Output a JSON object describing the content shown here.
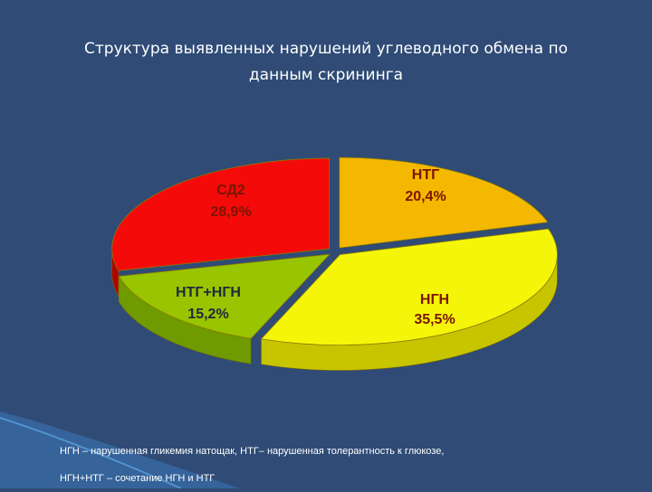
{
  "slide": {
    "title_line1": "Структура выявленных нарушений углеводного обмена по",
    "title_line2": "данным скрининга",
    "footnote_line1": "НГН – нарушенная гликемия натощак, НТГ– нарушенная толерантность к глюкозе,",
    "footnote_line2": "НГН+НТГ – сочетание НГН и НТГ",
    "background_color": "#2f4b76"
  },
  "chart_data": {
    "type": "pie",
    "title": "",
    "style": "3d-exploded",
    "slices": [
      {
        "label": "НТГ",
        "value_text": "20,4%",
        "value": 20.4,
        "color": "#f5b800",
        "side_color": "#c78c00",
        "label_color": "#7a1500"
      },
      {
        "label": "НГН",
        "value_text": "35,5%",
        "value": 35.5,
        "color": "#f5f50a",
        "side_color": "#c7c400",
        "label_color": "#7a1500"
      },
      {
        "label": "НТГ+НГН",
        "value_text": "15,2%",
        "value": 15.2,
        "color": "#99c400",
        "side_color": "#6f9a00",
        "label_color": "#1f2a3a"
      },
      {
        "label": "СД2",
        "value_text": "28,9%",
        "value": 28.9,
        "color": "#f50a0a",
        "side_color": "#b30000",
        "label_color": "#7a1500"
      }
    ]
  }
}
